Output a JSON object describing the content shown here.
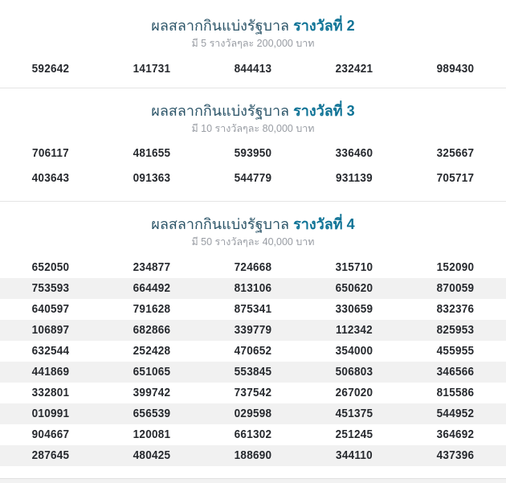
{
  "page": {
    "colors": {
      "background": "#ffffff",
      "title_regular": "#2b5468",
      "title_accent": "#0f7396",
      "subtitle": "#989ca3",
      "number": "#26292e",
      "row_stripe": "#f1f1f1",
      "divider": "#e5e5e5",
      "footer_strip": "#f2f2f2",
      "footer_strip_border": "#e0e0e0"
    }
  },
  "sections": [
    {
      "title_regular": "ผลสลากกินแบ่งรัฐบาล",
      "title_prize": "รางวัลที่ 2",
      "subtitle": "มี 5 รางวัลๆละ 200,000 บาท",
      "striped": false,
      "rows": [
        [
          "592642",
          "141731",
          "844413",
          "232421",
          "989430"
        ]
      ]
    },
    {
      "title_regular": "ผลสลากกินแบ่งรัฐบาล",
      "title_prize": "รางวัลที่ 3",
      "subtitle": "มี 10 รางวัลๆละ 80,000 บาท",
      "striped": false,
      "rows": [
        [
          "706117",
          "481655",
          "593950",
          "336460",
          "325667"
        ],
        [
          "403643",
          "091363",
          "544779",
          "931139",
          "705717"
        ]
      ]
    },
    {
      "title_regular": "ผลสลากกินแบ่งรัฐบาล",
      "title_prize": "รางวัลที่ 4",
      "subtitle": "มี 50 รางวัลๆละ 40,000 บาท",
      "striped": true,
      "rows": [
        [
          "652050",
          "234877",
          "724668",
          "315710",
          "152090"
        ],
        [
          "753593",
          "664492",
          "813106",
          "650620",
          "870059"
        ],
        [
          "640597",
          "791628",
          "875341",
          "330659",
          "832376"
        ],
        [
          "106897",
          "682866",
          "339779",
          "112342",
          "825953"
        ],
        [
          "632544",
          "252428",
          "470652",
          "354000",
          "455955"
        ],
        [
          "441869",
          "651065",
          "553845",
          "506803",
          "346566"
        ],
        [
          "332801",
          "399742",
          "737542",
          "267020",
          "815586"
        ],
        [
          "010991",
          "656539",
          "029598",
          "451375",
          "544952"
        ],
        [
          "904667",
          "120081",
          "661302",
          "251245",
          "364692"
        ],
        [
          "287645",
          "480425",
          "188690",
          "344110",
          "437396"
        ]
      ]
    }
  ]
}
